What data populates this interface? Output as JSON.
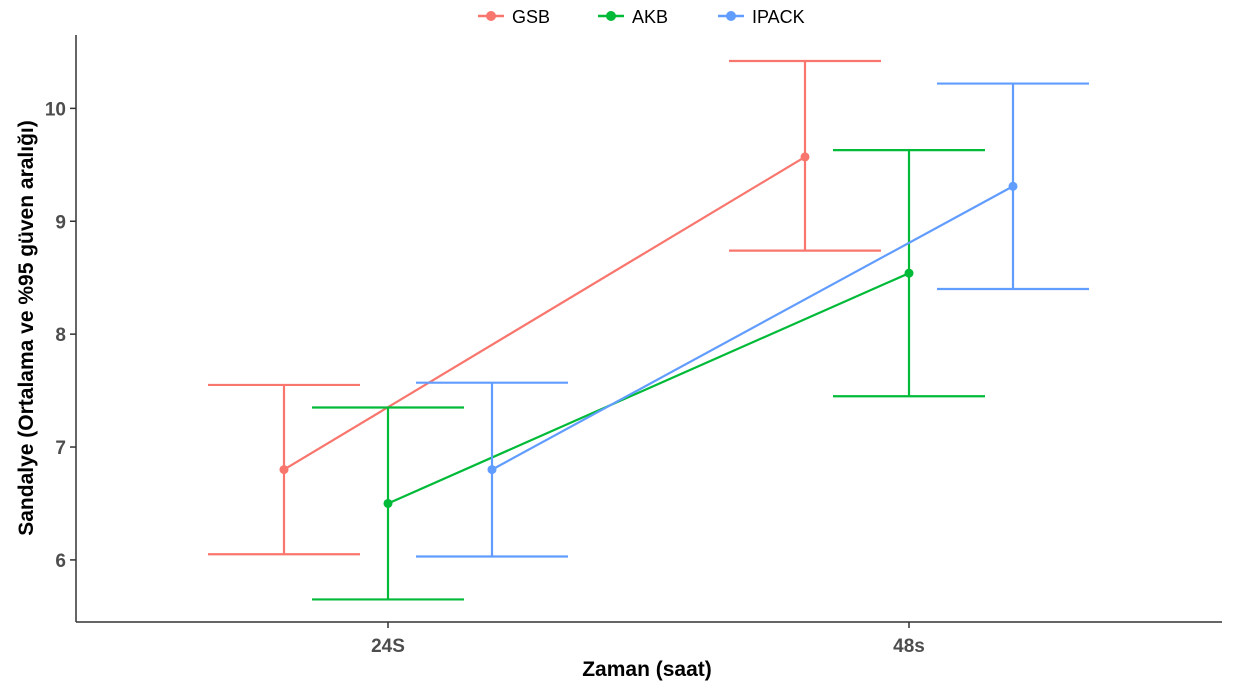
{
  "chart_data": {
    "type": "line",
    "title": "",
    "xlabel": "Zaman (saat)",
    "ylabel": "Sandalye (Ortalama ve %95 güven aralığı)",
    "categories": [
      "24S",
      "48s"
    ],
    "ylim": [
      5.45,
      10.65
    ],
    "yticks": [
      6,
      7,
      8,
      9,
      10
    ],
    "grid": false,
    "legend_position": "top",
    "error_bars": true,
    "series": [
      {
        "name": "GSB",
        "color": "#F8766D",
        "values": [
          6.8,
          9.57
        ],
        "lower": [
          6.05,
          8.74
        ],
        "upper": [
          7.55,
          10.42
        ]
      },
      {
        "name": "AKB",
        "color": "#00BA38",
        "values": [
          6.5,
          8.54
        ],
        "lower": [
          5.65,
          7.45
        ],
        "upper": [
          7.35,
          9.63
        ]
      },
      {
        "name": "IPACK",
        "color": "#619CFF",
        "values": [
          6.8,
          9.31
        ],
        "lower": [
          6.03,
          8.4
        ],
        "upper": [
          7.57,
          10.22
        ]
      }
    ]
  }
}
